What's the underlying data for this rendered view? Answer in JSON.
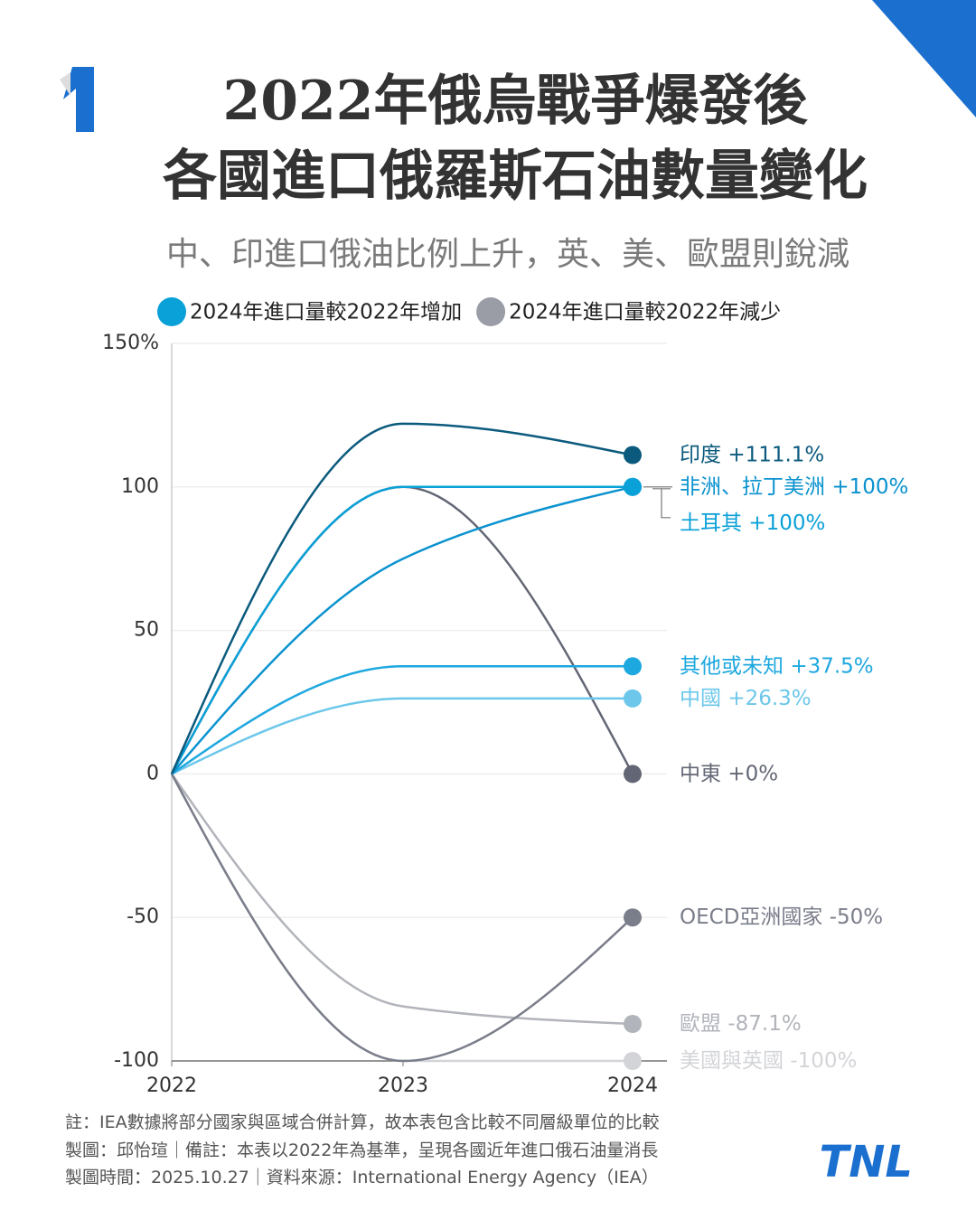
{
  "chart_data": {
    "type": "line",
    "title": [
      "2022年俄烏戰爭爆發後",
      "各國進口俄羅斯石油數量變化"
    ],
    "subtitle": "中、印進口俄油比例上升，英、美、歐盟則銳減",
    "legend": [
      {
        "label": "2024年進口量較2022年增加",
        "color": "#0aa0d8"
      },
      {
        "label": "2024年進口量較2022年減少",
        "color": "#9a9ca6"
      }
    ],
    "x": [
      "2022",
      "2023",
      "2024"
    ],
    "ylim": [
      -100,
      150
    ],
    "yticks": [
      {
        "value": 150,
        "label": "150%"
      },
      100,
      50,
      0,
      -50,
      -100
    ],
    "grid": true,
    "series": [
      {
        "name": "印度",
        "color": "#0b5a7d",
        "values": [
          0,
          122,
          111.1
        ],
        "value_labels": [
          "",
          "",
          "+111.1%"
        ]
      },
      {
        "name": "非洲、拉丁美洲",
        "color": "#0a92cf",
        "values": [
          0,
          75,
          100
        ],
        "value_labels": [
          "",
          "",
          "+100%"
        ]
      },
      {
        "name": "土耳其",
        "color": "#0aa0d8",
        "values": [
          0,
          100,
          100
        ],
        "value_labels": [
          "",
          "",
          "+100%"
        ]
      },
      {
        "name": "其他或未知",
        "color": "#1ea8e0",
        "values": [
          0,
          37.5,
          37.5
        ],
        "value_labels": [
          "",
          "",
          "+37.5%"
        ]
      },
      {
        "name": "中國",
        "color": "#6cc7ea",
        "values": [
          0,
          26.3,
          26.3
        ],
        "value_labels": [
          "",
          "",
          "+26.3%"
        ]
      },
      {
        "name": "中東",
        "color": "#636775",
        "values": [
          0,
          100,
          0
        ],
        "value_labels": [
          "",
          "",
          "+0%"
        ]
      },
      {
        "name": "OECD亞洲國家",
        "color": "#7a7d8a",
        "values": [
          0,
          -100,
          -50
        ],
        "value_labels": [
          "",
          "",
          "-50%"
        ]
      },
      {
        "name": "歐盟",
        "color": "#b2b4bb",
        "values": [
          0,
          -81,
          -87.1
        ],
        "value_labels": [
          "",
          "",
          "-87.1%"
        ]
      },
      {
        "name": "美國與英國",
        "color": "#d3d4d8",
        "values": [
          0,
          -100,
          -100
        ],
        "value_labels": [
          "",
          "",
          "-100%"
        ]
      }
    ],
    "notes": [
      "註：IEA數據將部分國家與區域合併計算，故本表包含比較不同層級單位的比較",
      "製圖：邱怡瑄｜備註：本表以2022年為基準，呈現各國近年進口俄石油量消長",
      "製圖時間：2025.10.27｜資料來源：International Energy Agency（IEA）"
    ],
    "logo": "TNL"
  }
}
